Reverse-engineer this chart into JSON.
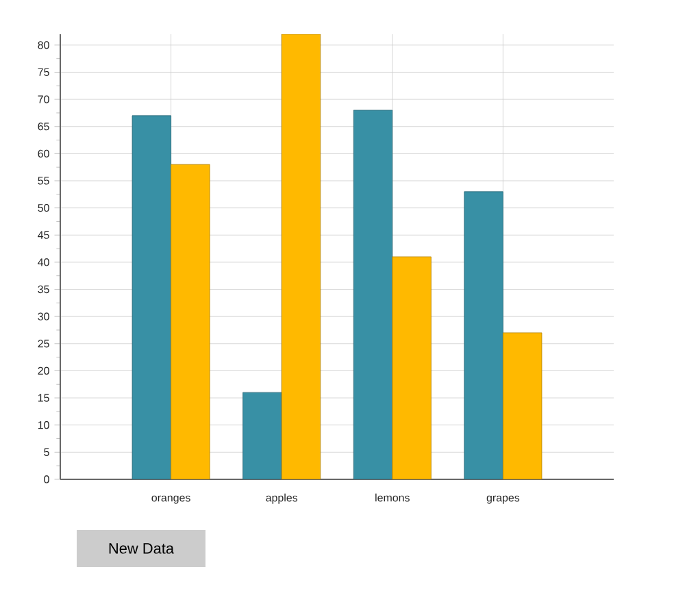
{
  "chart_data": {
    "type": "bar",
    "categories": [
      "oranges",
      "apples",
      "lemons",
      "grapes"
    ],
    "series": [
      {
        "color": "#3890a5",
        "values": [
          67,
          16,
          68,
          53
        ]
      },
      {
        "color": "#ffb900",
        "values": [
          58,
          82,
          41,
          27
        ]
      }
    ],
    "ylim": [
      0,
      82
    ],
    "yticks": [
      0,
      5,
      10,
      15,
      20,
      25,
      30,
      35,
      40,
      45,
      50,
      55,
      60,
      65,
      70,
      75,
      80
    ],
    "grid": true,
    "annotations": [
      "New Data"
    ]
  }
}
